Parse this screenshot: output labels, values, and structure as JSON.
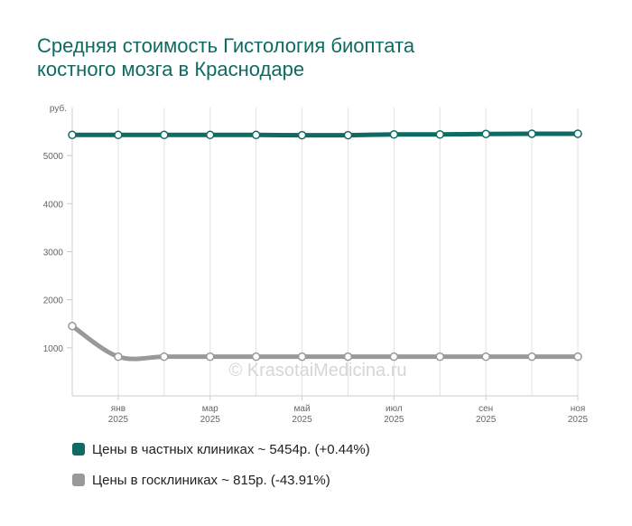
{
  "title_lines": [
    "Средняя стоимость Гистология биоптата",
    "костного мозга в Краснодаре"
  ],
  "watermark": "© KrasotaiMedicina.ru",
  "chart_data": {
    "type": "line",
    "yunit": "руб.",
    "ylim": [
      0,
      6000
    ],
    "yticks": [
      1000,
      2000,
      3000,
      4000,
      5000
    ],
    "x": [
      "2024-12",
      "2025-01",
      "2025-02",
      "2025-03",
      "2025-04",
      "2025-05",
      "2025-06",
      "2025-07",
      "2025-08",
      "2025-09",
      "2025-10",
      "2025-11"
    ],
    "xticks": [
      {
        "month": "янв",
        "year": "2025",
        "index": 1
      },
      {
        "month": "мар",
        "year": "2025",
        "index": 3
      },
      {
        "month": "май",
        "year": "2025",
        "index": 5
      },
      {
        "month": "июл",
        "year": "2025",
        "index": 7
      },
      {
        "month": "сен",
        "year": "2025",
        "index": 9
      },
      {
        "month": "ноя",
        "year": "2025",
        "index": 11
      }
    ],
    "grid": "vertical",
    "series": [
      {
        "name": "Цены в частных клиниках ~ 5454р. (+0.44%)",
        "color": "#0e6b63",
        "values": [
          5430,
          5430,
          5430,
          5430,
          5430,
          5425,
          5425,
          5440,
          5440,
          5450,
          5455,
          5454
        ]
      },
      {
        "name": "Цены в госклиниках ~ 815р. (-43.91%)",
        "color": "#999999",
        "values": [
          1453,
          815,
          815,
          815,
          815,
          815,
          815,
          815,
          815,
          815,
          815,
          815
        ]
      }
    ]
  }
}
